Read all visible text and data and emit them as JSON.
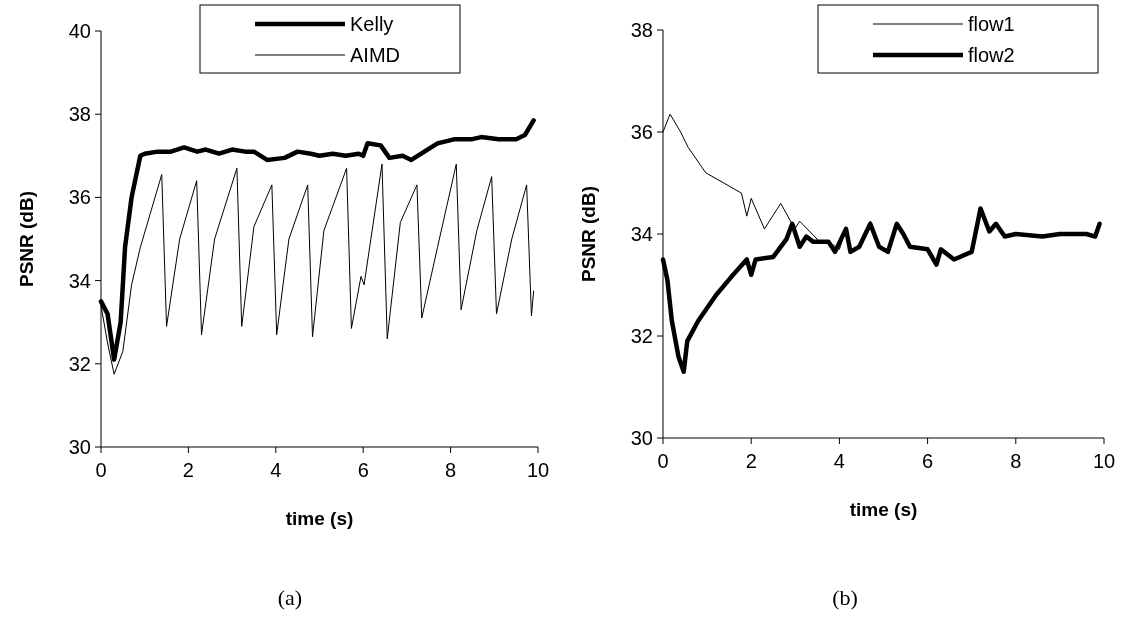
{
  "chart_data": [
    {
      "type": "line",
      "xlabel": "time (s)",
      "ylabel": "PSNR (dB)",
      "xlim": [
        0,
        10
      ],
      "ylim": [
        30,
        40
      ],
      "xticks": [
        0,
        2,
        4,
        6,
        8,
        10
      ],
      "yticks": [
        30,
        32,
        34,
        36,
        38,
        40
      ],
      "legend": "top right",
      "grid": false,
      "marker": "none",
      "line_style": "solid",
      "annotations": [
        "(a)"
      ],
      "series": [
        {
          "name": "Kelly",
          "color": "#000000",
          "x": [
            0,
            0.15,
            0.3,
            0.45,
            0.55,
            0.7,
            0.9,
            1.0,
            1.3,
            1.6,
            1.9,
            2.2,
            2.4,
            2.7,
            3.0,
            3.3,
            3.5,
            3.8,
            4.2,
            4.5,
            4.8,
            5.0,
            5.3,
            5.6,
            5.9,
            6.0,
            6.1,
            6.4,
            6.6,
            6.9,
            7.1,
            7.4,
            7.7,
            8.1,
            8.5,
            8.7,
            9.1,
            9.5,
            9.7,
            9.9
          ],
          "values": [
            33.5,
            33.2,
            32.1,
            33.0,
            34.8,
            36.0,
            37.0,
            37.05,
            37.1,
            37.1,
            37.2,
            37.1,
            37.15,
            37.05,
            37.15,
            37.1,
            37.1,
            36.9,
            36.95,
            37.1,
            37.05,
            37.0,
            37.05,
            37.0,
            37.05,
            37.0,
            37.3,
            37.25,
            36.95,
            37.0,
            36.9,
            37.1,
            37.3,
            37.4,
            37.4,
            37.45,
            37.4,
            37.4,
            37.5,
            37.85
          ]
        },
        {
          "name": "AIMD",
          "color": "#000000",
          "x": [
            0,
            0.15,
            0.3,
            0.5,
            0.7,
            0.9,
            1.39,
            1.5,
            1.8,
            2.19,
            2.3,
            2.6,
            3.11,
            3.22,
            3.5,
            3.91,
            4.02,
            4.3,
            4.73,
            4.84,
            5.1,
            5.62,
            5.73,
            5.95,
            6.02,
            6.43,
            6.55,
            6.85,
            7.23,
            7.34,
            7.7,
            8.13,
            8.24,
            8.6,
            8.94,
            9.05,
            9.4,
            9.74,
            9.85,
            9.9
          ],
          "values": [
            33.4,
            32.5,
            31.75,
            32.3,
            33.9,
            34.8,
            36.55,
            32.9,
            35.0,
            36.4,
            32.7,
            35.0,
            36.7,
            32.9,
            35.3,
            36.3,
            32.7,
            35.0,
            36.3,
            32.65,
            35.2,
            36.7,
            32.85,
            34.1,
            33.9,
            36.8,
            32.6,
            35.4,
            36.3,
            33.1,
            34.8,
            36.8,
            33.3,
            35.2,
            36.5,
            33.2,
            35.0,
            36.3,
            33.15,
            33.75
          ]
        }
      ]
    },
    {
      "type": "line",
      "xlabel": "time (s)",
      "ylabel": "PSNR (dB)",
      "xlim": [
        0,
        10
      ],
      "ylim": [
        30,
        38
      ],
      "xticks": [
        0,
        2,
        4,
        6,
        8,
        10
      ],
      "yticks": [
        30,
        32,
        34,
        36,
        38
      ],
      "legend": "top right",
      "grid": false,
      "marker": "none",
      "line_style": "solid",
      "annotations": [
        "(b)"
      ],
      "series": [
        {
          "name": "flow1",
          "color": "#000000",
          "x": [
            0,
            0.16,
            0.4,
            0.57,
            0.97,
            1.38,
            1.78,
            1.9,
            2.0,
            2.3,
            2.67,
            2.99,
            3.1,
            3.55,
            3.75,
            4.0,
            4.15,
            4.25,
            4.45,
            4.7,
            4.9,
            5.1,
            5.3,
            5.45,
            5.6,
            6.0,
            6.2,
            6.3,
            6.6,
            7.0,
            7.2,
            7.4,
            7.55,
            7.75,
            8.0,
            8.6,
            9.0,
            9.6,
            9.8,
            9.9
          ],
          "values": [
            36.0,
            36.35,
            36.0,
            35.7,
            35.2,
            35.0,
            34.8,
            34.35,
            34.7,
            34.1,
            34.6,
            34.1,
            34.25,
            33.85,
            33.85,
            33.7,
            34.1,
            33.65,
            33.75,
            34.25,
            33.75,
            33.65,
            34.2,
            34.0,
            33.75,
            33.7,
            33.4,
            33.7,
            33.5,
            33.65,
            34.5,
            34.05,
            34.2,
            33.95,
            34.0,
            33.95,
            34.0,
            34.0,
            33.95,
            34.2
          ]
        },
        {
          "name": "flow2",
          "color": "#000000",
          "x": [
            0,
            0.1,
            0.2,
            0.35,
            0.47,
            0.55,
            0.8,
            1.2,
            1.54,
            1.9,
            2.0,
            2.1,
            2.5,
            2.8,
            2.93,
            3.1,
            3.25,
            3.4,
            3.75,
            3.9,
            4.15,
            4.25,
            4.45,
            4.7,
            4.9,
            5.1,
            5.3,
            5.45,
            5.6,
            6.0,
            6.2,
            6.3,
            6.6,
            7.0,
            7.2,
            7.4,
            7.55,
            7.75,
            8.0,
            8.6,
            9.0,
            9.6,
            9.8,
            9.9
          ],
          "values": [
            33.5,
            33.1,
            32.3,
            31.6,
            31.3,
            31.9,
            32.3,
            32.8,
            33.15,
            33.5,
            33.2,
            33.5,
            33.55,
            33.9,
            34.2,
            33.75,
            33.95,
            33.85,
            33.85,
            33.65,
            34.1,
            33.65,
            33.75,
            34.2,
            33.75,
            33.65,
            34.2,
            34.0,
            33.75,
            33.7,
            33.4,
            33.7,
            33.5,
            33.65,
            34.5,
            34.05,
            34.2,
            33.95,
            34.0,
            33.95,
            34.0,
            34.0,
            33.95,
            34.2
          ]
        }
      ]
    }
  ]
}
